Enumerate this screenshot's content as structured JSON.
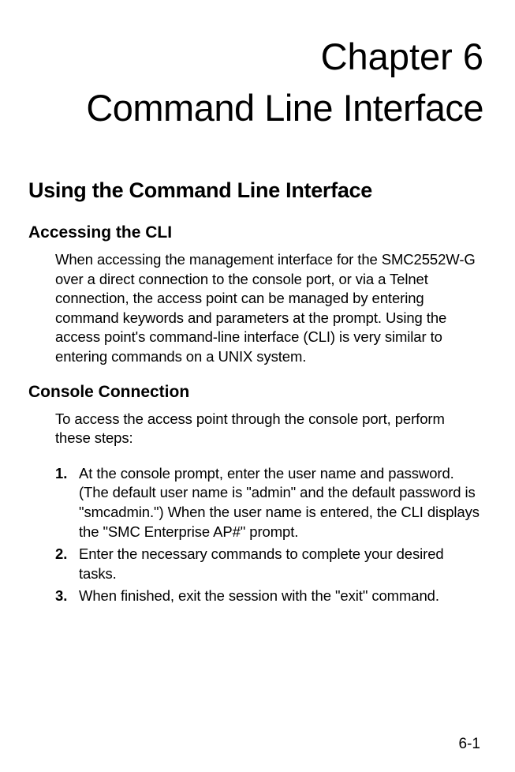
{
  "chapter": {
    "number_label": "Chapter 6",
    "title": "Command Line Interface"
  },
  "section": {
    "heading": "Using the Command Line Interface"
  },
  "subsections": {
    "accessing": {
      "heading": "Accessing the CLI",
      "body": "When accessing the management interface for the SMC2552W-G over a direct connection to the console port, or via a Telnet connection, the access point can be managed by entering command keywords and parameters at the prompt. Using the access point's command-line interface (CLI) is very similar to entering commands on a UNIX system."
    },
    "console": {
      "heading": "Console Connection",
      "intro": "To access the access point through the console port, perform these steps:",
      "steps": [
        {
          "num": "1.",
          "text": "At the console prompt, enter the user name and password. (The default user name is \"admin\" and the default password is \"smcadmin.\") When the user name is entered, the CLI displays the \"SMC Enterprise AP#\" prompt."
        },
        {
          "num": "2.",
          "text": "Enter the necessary commands to complete your desired tasks."
        },
        {
          "num": "3.",
          "text": "When finished, exit the session with the \"exit\" command."
        }
      ]
    }
  },
  "footer": {
    "page_number": "6-1"
  },
  "colors": {
    "background": "#ffffff",
    "text": "#000000"
  },
  "typography": {
    "chapter_fontsize": 47,
    "h1_fontsize": 27,
    "h2_fontsize": 21,
    "body_fontsize": 18.5,
    "footer_fontsize": 19
  }
}
